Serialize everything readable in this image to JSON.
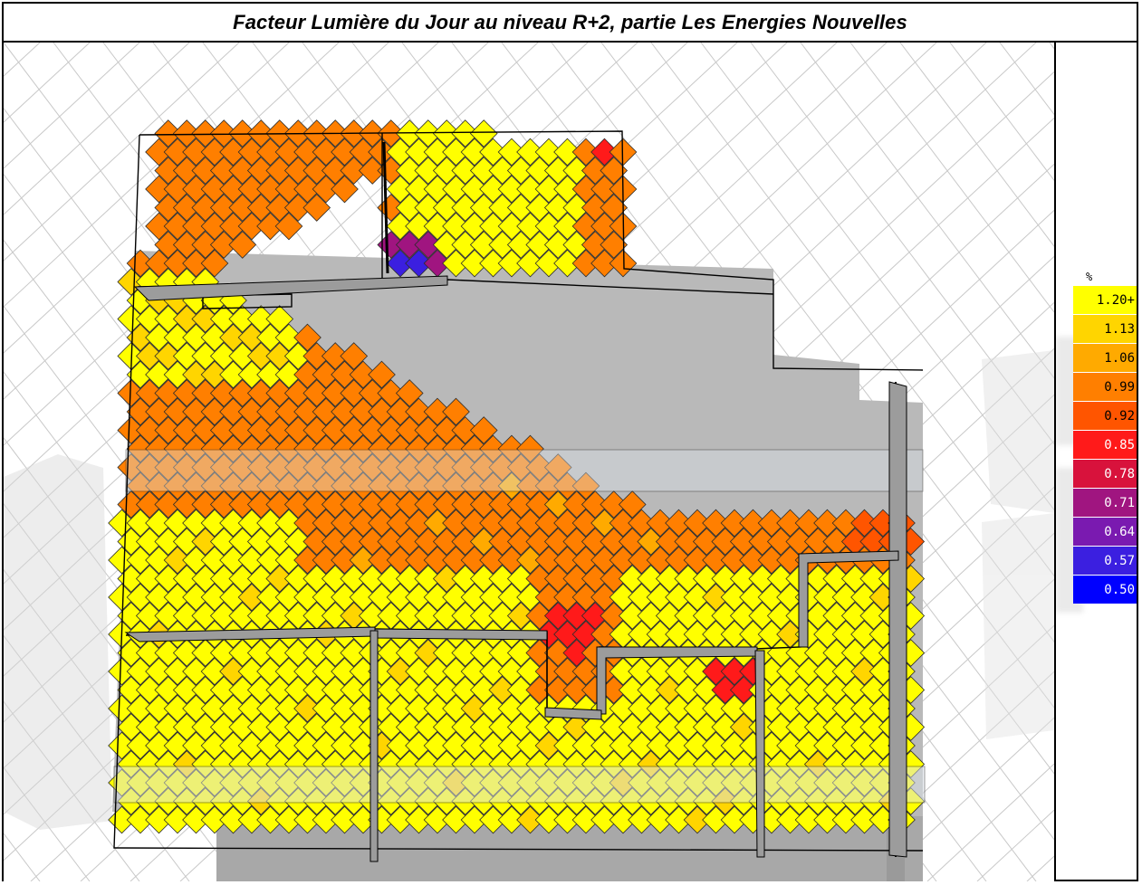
{
  "title": "Facteur Lumière du Jour au niveau R+2, partie Les Energies Nouvelles",
  "legend": {
    "unit": "%",
    "entries": [
      {
        "label": "1.20+",
        "color": "#ffff00"
      },
      {
        "label": "1.13",
        "color": "#ffd500"
      },
      {
        "label": "1.06",
        "color": "#ffaa00"
      },
      {
        "label": "0.99",
        "color": "#ff7f00"
      },
      {
        "label": "0.92",
        "color": "#ff5500"
      },
      {
        "label": "0.85",
        "color": "#ff1a1a"
      },
      {
        "label": "0.78",
        "color": "#d8123c"
      },
      {
        "label": "0.71",
        "color": "#a01580"
      },
      {
        "label": "0.64",
        "color": "#7a1ab0"
      },
      {
        "label": "0.57",
        "color": "#3b1fe0"
      },
      {
        "label": "0.50",
        "color": "#0000ff"
      }
    ]
  }
}
